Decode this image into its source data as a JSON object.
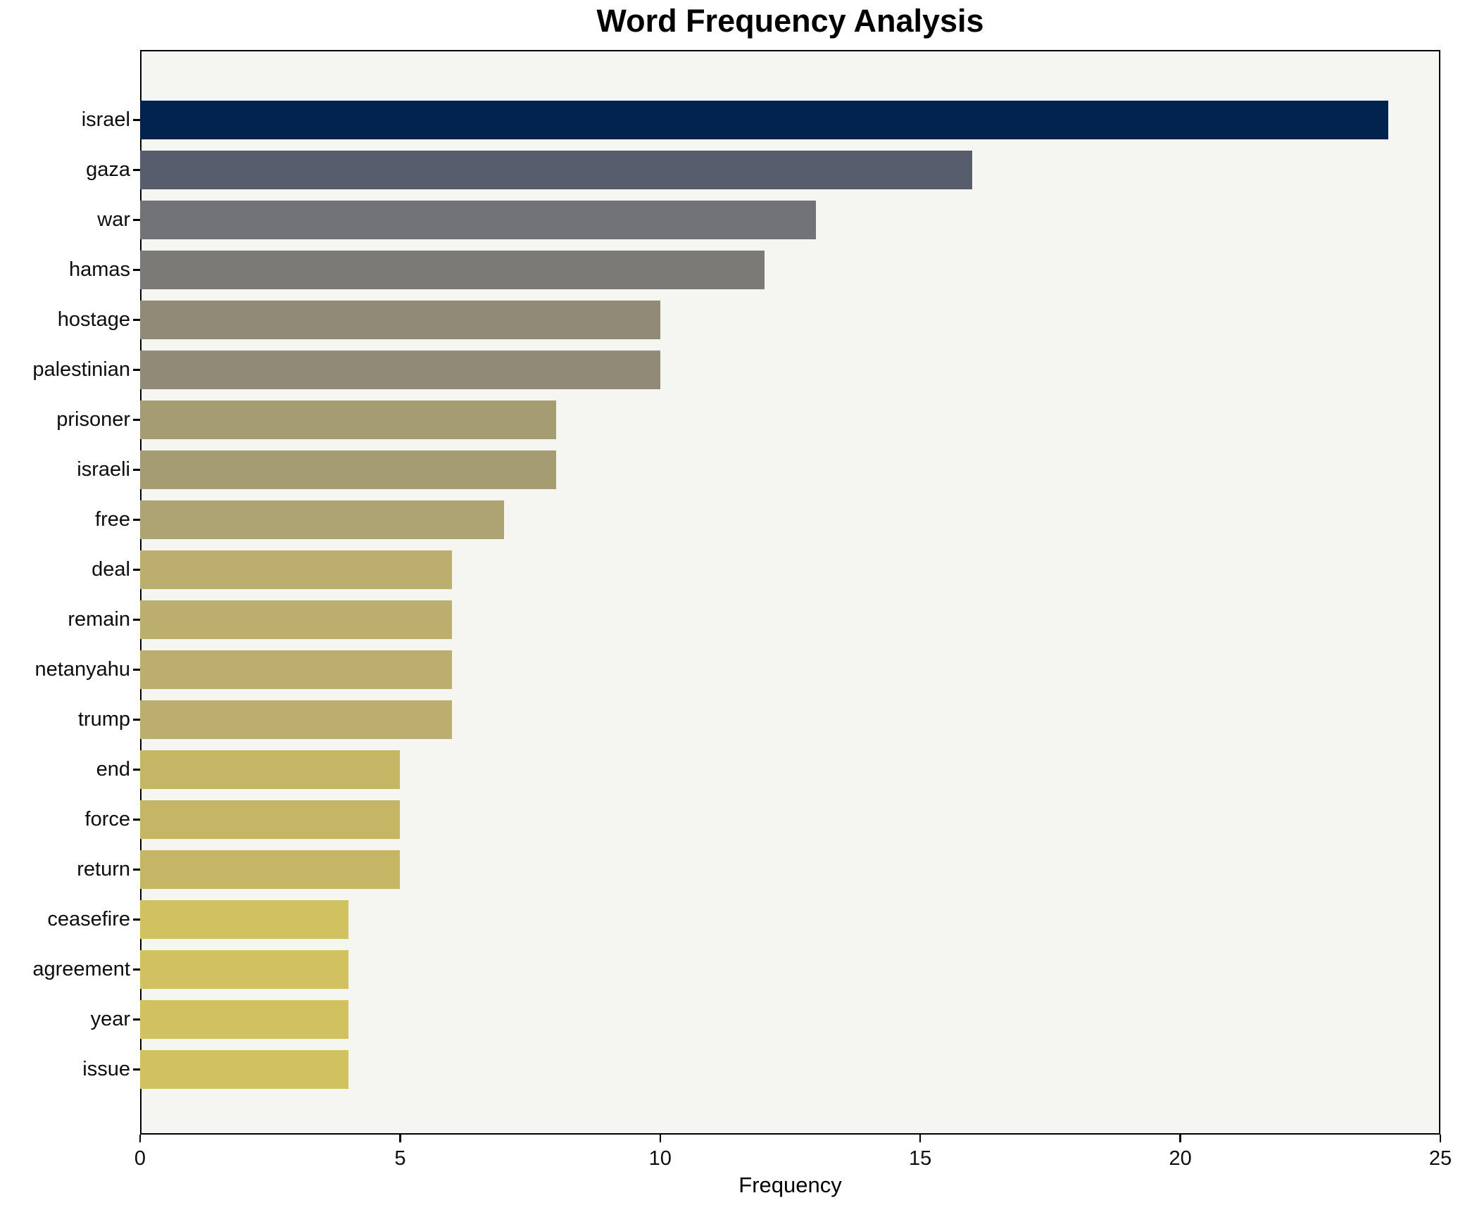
{
  "figure": {
    "title": "Word Frequency Analysis",
    "xlabel": "Frequency"
  },
  "chart_data": {
    "type": "bar",
    "orientation": "horizontal",
    "title": "Word Frequency Analysis",
    "xlabel": "Frequency",
    "ylabel": "",
    "xlim": [
      0,
      25
    ],
    "xticks": [
      0,
      5,
      10,
      15,
      20,
      25
    ],
    "grid": false,
    "legend_position": "none",
    "figure_bg": "#ffffff",
    "plot_bg": "#f5f5f2",
    "axis_color": "#000000",
    "categories": [
      "israel",
      "gaza",
      "war",
      "hamas",
      "hostage",
      "palestinian",
      "prisoner",
      "israeli",
      "free",
      "deal",
      "remain",
      "netanyahu",
      "trump",
      "end",
      "force",
      "return",
      "ceasefire",
      "agreement",
      "year",
      "issue"
    ],
    "values": [
      24,
      16,
      13,
      12,
      10,
      10,
      8,
      8,
      7,
      6,
      6,
      6,
      6,
      5,
      5,
      5,
      4,
      4,
      4,
      4
    ],
    "bar_colors": [
      "#02234e",
      "#575d6d",
      "#727376",
      "#7b7a76",
      "#918a76",
      "#918a76",
      "#a69c72",
      "#a69c72",
      "#aea372",
      "#bcae6e",
      "#bcae6e",
      "#bcae6e",
      "#bcae6e",
      "#c5b666",
      "#c5b666",
      "#c5b666",
      "#d2c161",
      "#d2c161",
      "#d2c161",
      "#d2c161"
    ]
  }
}
